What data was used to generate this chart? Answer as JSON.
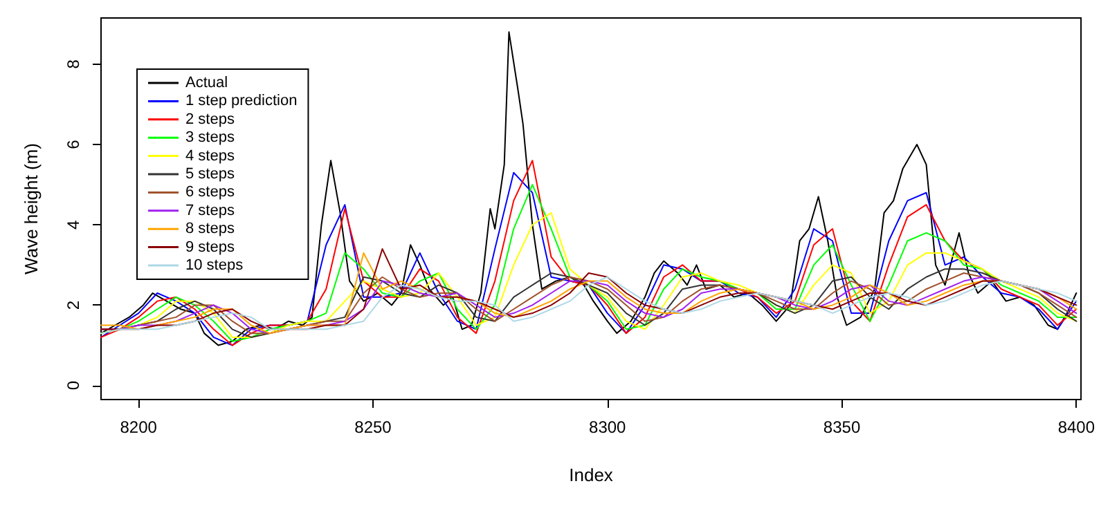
{
  "chart_data": {
    "type": "line",
    "xlabel": "Index",
    "ylabel": "Wave height (m)",
    "x": [
      8192,
      8196,
      8200,
      8204,
      8208,
      8212,
      8216,
      8220,
      8224,
      8228,
      8232,
      8236,
      8240,
      8244,
      8248,
      8252,
      8256,
      8260,
      8264,
      8268,
      8272,
      8276,
      8280,
      8284,
      8288,
      8292,
      8296,
      8300,
      8304,
      8308,
      8312,
      8316,
      8320,
      8324,
      8328,
      8332,
      8336,
      8340,
      8344,
      8348,
      8352,
      8356,
      8360,
      8364,
      8368,
      8372,
      8376,
      8380,
      8384,
      8388,
      8392,
      8396,
      8400
    ],
    "series": [
      {
        "name": "Actual",
        "color": "#000000",
        "x": [
          8192,
          8195,
          8198,
          8201,
          8203,
          8206,
          8209,
          8212,
          8214,
          8217,
          8220,
          8223,
          8226,
          8229,
          8232,
          8235,
          8237,
          8239,
          8241,
          8243,
          8245,
          8248,
          8251,
          8254,
          8256,
          8258,
          8260,
          8262,
          8265,
          8267,
          8269,
          8271,
          8273,
          8275,
          8276,
          8278,
          8279,
          8281,
          8282,
          8284,
          8286,
          8289,
          8292,
          8295,
          8297,
          8300,
          8302,
          8305,
          8308,
          8310,
          8312,
          8315,
          8317,
          8319,
          8321,
          8324,
          8327,
          8330,
          8333,
          8336,
          8339,
          8341,
          8343,
          8345,
          8347,
          8349,
          8351,
          8354,
          8357,
          8359,
          8361,
          8363,
          8366,
          8368,
          8370,
          8372,
          8375,
          8377,
          8379,
          8382,
          8385,
          8388,
          8391,
          8394,
          8396,
          8398,
          8400
        ],
        "values": [
          1.3,
          1.5,
          1.7,
          2.0,
          2.3,
          2.1,
          1.9,
          1.8,
          1.3,
          1.0,
          1.1,
          1.4,
          1.5,
          1.4,
          1.6,
          1.5,
          1.7,
          4.0,
          5.6,
          4.3,
          2.6,
          2.1,
          2.3,
          2.0,
          2.3,
          3.5,
          3.0,
          2.4,
          2.0,
          2.2,
          1.4,
          1.5,
          2.3,
          4.4,
          3.9,
          5.5,
          8.8,
          7.3,
          6.5,
          4.0,
          2.4,
          2.6,
          2.7,
          2.5,
          2.1,
          1.6,
          1.3,
          1.6,
          2.2,
          2.8,
          3.1,
          2.8,
          2.5,
          3.0,
          2.4,
          2.5,
          2.2,
          2.3,
          2.0,
          1.6,
          2.0,
          3.6,
          3.9,
          4.7,
          3.6,
          2.2,
          1.5,
          1.7,
          2.4,
          4.3,
          4.6,
          5.4,
          6.0,
          5.5,
          3.0,
          2.5,
          3.8,
          2.8,
          2.3,
          2.6,
          2.1,
          2.2,
          2.0,
          1.5,
          1.4,
          1.8,
          2.3
        ]
      },
      {
        "name": "1 step prediction",
        "color": "#0000ff",
        "values": [
          1.2,
          1.5,
          1.8,
          2.3,
          2.1,
          1.8,
          1.2,
          1.0,
          1.4,
          1.5,
          1.5,
          1.6,
          3.5,
          4.5,
          2.2,
          2.2,
          2.3,
          3.3,
          2.3,
          1.6,
          1.4,
          3.4,
          5.3,
          4.8,
          2.7,
          2.6,
          2.5,
          1.8,
          1.3,
          2.0,
          3.0,
          2.9,
          2.6,
          2.6,
          2.3,
          2.2,
          1.7,
          2.4,
          3.9,
          3.6,
          1.8,
          1.8,
          3.6,
          4.6,
          4.8,
          3.0,
          3.2,
          2.7,
          2.3,
          2.2,
          1.9,
          1.4,
          2.1
        ]
      },
      {
        "name": "2 steps",
        "color": "#ff0000",
        "values": [
          1.2,
          1.4,
          1.7,
          2.1,
          2.2,
          1.9,
          1.4,
          1.0,
          1.3,
          1.5,
          1.5,
          1.6,
          2.4,
          4.4,
          2.6,
          2.2,
          2.2,
          2.9,
          2.6,
          1.7,
          1.3,
          2.6,
          4.6,
          5.6,
          3.2,
          2.6,
          2.5,
          2.0,
          1.3,
          1.7,
          2.7,
          3.0,
          2.6,
          2.6,
          2.4,
          2.2,
          1.8,
          2.1,
          3.5,
          3.9,
          2.1,
          1.6,
          3.0,
          4.2,
          4.5,
          3.6,
          3.1,
          2.9,
          2.4,
          2.2,
          2.0,
          1.5,
          1.9
        ]
      },
      {
        "name": "3 steps",
        "color": "#00ff00",
        "values": [
          1.3,
          1.4,
          1.6,
          1.9,
          2.2,
          2.0,
          1.6,
          1.1,
          1.2,
          1.4,
          1.5,
          1.6,
          1.8,
          3.3,
          2.9,
          2.3,
          2.2,
          2.6,
          2.8,
          1.9,
          1.4,
          2.0,
          3.9,
          5.0,
          3.9,
          2.7,
          2.5,
          2.1,
          1.4,
          1.5,
          2.4,
          2.9,
          2.7,
          2.6,
          2.4,
          2.3,
          1.9,
          1.9,
          3.0,
          3.5,
          2.5,
          1.6,
          2.5,
          3.6,
          3.8,
          3.6,
          3.0,
          2.9,
          2.5,
          2.3,
          2.1,
          1.7,
          1.7
        ]
      },
      {
        "name": "4 steps",
        "color": "#ffff00",
        "values": [
          1.3,
          1.4,
          1.5,
          1.7,
          2.1,
          2.1,
          1.8,
          1.2,
          1.2,
          1.3,
          1.5,
          1.6,
          1.6,
          2.1,
          2.6,
          2.4,
          2.2,
          2.3,
          2.8,
          2.2,
          1.5,
          1.7,
          3.0,
          4.0,
          4.3,
          2.9,
          2.5,
          2.2,
          1.6,
          1.4,
          2.0,
          2.7,
          2.8,
          2.6,
          2.5,
          2.3,
          2.0,
          1.8,
          2.5,
          3.0,
          2.8,
          1.8,
          2.1,
          3.0,
          3.3,
          3.3,
          3.1,
          2.9,
          2.6,
          2.4,
          2.2,
          1.8,
          1.6
        ]
      },
      {
        "name": "5 steps",
        "color": "#333333",
        "values": [
          1.4,
          1.4,
          1.5,
          1.6,
          1.9,
          2.1,
          1.9,
          1.4,
          1.2,
          1.3,
          1.4,
          1.5,
          1.6,
          1.7,
          2.7,
          2.6,
          2.3,
          2.2,
          2.5,
          2.3,
          1.7,
          1.6,
          2.2,
          2.5,
          2.8,
          2.7,
          2.5,
          2.3,
          1.8,
          1.5,
          1.8,
          2.4,
          2.5,
          2.5,
          2.4,
          2.3,
          2.0,
          1.8,
          2.0,
          2.6,
          2.7,
          2.2,
          1.9,
          2.4,
          2.7,
          2.9,
          2.9,
          2.8,
          2.6,
          2.5,
          2.3,
          1.9,
          1.6
        ]
      },
      {
        "name": "6 steps",
        "color": "#a0522d",
        "values": [
          1.4,
          1.4,
          1.5,
          1.6,
          1.7,
          2.0,
          2.0,
          1.6,
          1.3,
          1.3,
          1.4,
          1.5,
          1.6,
          1.6,
          2.3,
          2.7,
          2.4,
          2.2,
          2.3,
          2.3,
          1.9,
          1.6,
          1.9,
          2.2,
          2.5,
          2.7,
          2.6,
          2.4,
          2.0,
          1.6,
          1.7,
          2.1,
          2.4,
          2.5,
          2.4,
          2.3,
          2.1,
          1.9,
          1.9,
          2.3,
          2.6,
          2.4,
          2.0,
          2.1,
          2.4,
          2.6,
          2.8,
          2.7,
          2.6,
          2.5,
          2.3,
          2.0,
          1.7
        ]
      },
      {
        "name": "7 steps",
        "color": "#a020f0",
        "values": [
          1.4,
          1.4,
          1.5,
          1.5,
          1.6,
          1.8,
          2.0,
          1.8,
          1.4,
          1.3,
          1.4,
          1.5,
          1.5,
          1.6,
          1.9,
          2.6,
          2.5,
          2.3,
          2.2,
          2.3,
          2.0,
          1.7,
          1.8,
          2.0,
          2.3,
          2.6,
          2.6,
          2.5,
          2.1,
          1.8,
          1.7,
          1.9,
          2.3,
          2.4,
          2.4,
          2.3,
          2.2,
          2.0,
          1.9,
          2.1,
          2.4,
          2.5,
          2.1,
          2.0,
          2.2,
          2.4,
          2.6,
          2.7,
          2.6,
          2.5,
          2.4,
          2.1,
          1.8
        ]
      },
      {
        "name": "8 steps",
        "color": "#ffa500",
        "values": [
          1.5,
          1.5,
          1.4,
          1.5,
          1.6,
          1.7,
          1.9,
          1.9,
          1.5,
          1.3,
          1.4,
          1.5,
          1.5,
          1.5,
          3.3,
          2.4,
          2.6,
          2.4,
          2.2,
          2.2,
          2.1,
          1.8,
          1.7,
          1.9,
          2.1,
          2.4,
          2.6,
          2.6,
          2.2,
          1.9,
          1.8,
          1.8,
          2.1,
          2.3,
          2.4,
          2.3,
          2.2,
          2.1,
          1.9,
          2.0,
          2.2,
          2.5,
          2.3,
          2.0,
          2.1,
          2.3,
          2.5,
          2.6,
          2.6,
          2.5,
          2.4,
          2.2,
          1.9
        ]
      },
      {
        "name": "9 steps",
        "color": "#8b0000",
        "values": [
          1.4,
          1.4,
          1.4,
          1.5,
          1.5,
          1.6,
          1.8,
          1.9,
          1.6,
          1.4,
          1.4,
          1.4,
          1.5,
          1.5,
          1.9,
          3.4,
          2.4,
          2.5,
          2.2,
          2.2,
          2.1,
          1.9,
          1.7,
          1.8,
          2.0,
          2.3,
          2.8,
          2.7,
          2.3,
          2.0,
          1.9,
          1.8,
          2.0,
          2.2,
          2.3,
          2.3,
          2.2,
          2.1,
          2.0,
          1.9,
          2.1,
          2.3,
          2.3,
          2.1,
          2.0,
          2.2,
          2.4,
          2.6,
          2.6,
          2.5,
          2.4,
          2.2,
          2.0
        ]
      },
      {
        "name": "10 steps",
        "color": "#add8e6",
        "values": [
          1.3,
          1.4,
          1.4,
          1.4,
          1.5,
          1.6,
          1.7,
          1.8,
          1.7,
          1.4,
          1.4,
          1.4,
          1.4,
          1.5,
          1.6,
          2.2,
          2.5,
          2.4,
          2.2,
          2.1,
          2.1,
          2.0,
          1.6,
          1.7,
          1.9,
          2.1,
          2.5,
          2.7,
          2.4,
          2.1,
          1.9,
          1.8,
          1.9,
          2.1,
          2.2,
          2.3,
          2.2,
          2.1,
          2.0,
          1.8,
          2.0,
          2.2,
          2.3,
          2.2,
          2.0,
          2.1,
          2.3,
          2.5,
          2.6,
          2.5,
          2.4,
          2.3,
          2.1
        ]
      }
    ],
    "xlim": [
      8192,
      8401
    ],
    "xticks": [
      8200,
      8250,
      8300,
      8350,
      8400
    ],
    "ylim": [
      -0.35,
      9.15
    ],
    "yticks": [
      0,
      2,
      4,
      6,
      8
    ],
    "grid": false,
    "legend": "top left",
    "marker": "none",
    "line_style": "solid"
  }
}
